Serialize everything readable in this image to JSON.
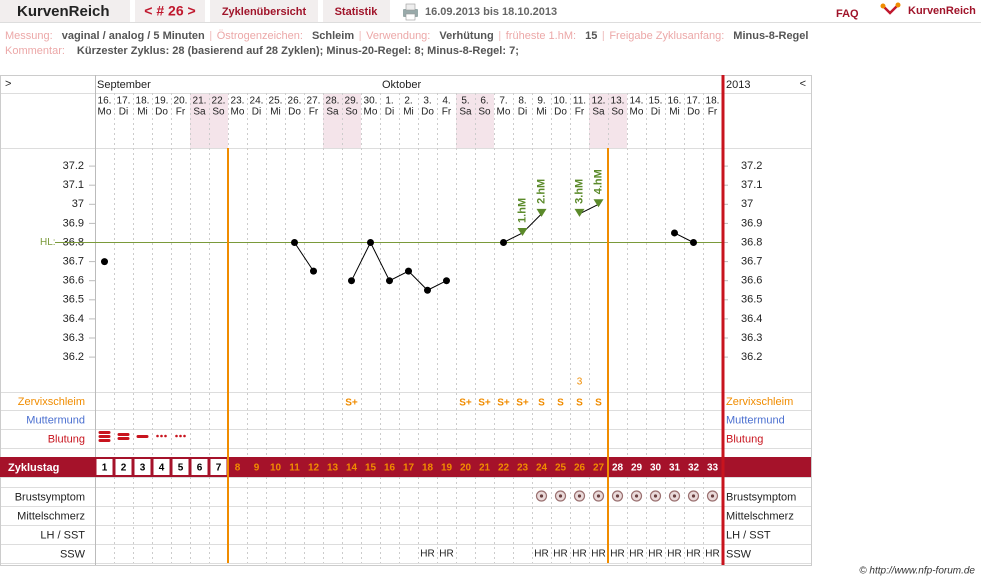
{
  "header": {
    "app": "KurvenReich",
    "cycle": "< # 26 >",
    "tabs": [
      "Zyklenübersicht",
      "Statistik"
    ],
    "range": "16.09.2013 bis 18.10.2013",
    "faq": "FAQ",
    "logo": "KurvenReich"
  },
  "info": {
    "items": [
      {
        "label": "Messung:",
        "value": "vaginal / analog / 5 Minuten"
      },
      {
        "label": "Östrogenzeichen:",
        "value": "Schleim"
      },
      {
        "label": "Verwendung:",
        "value": "Verhütung"
      },
      {
        "label": "früheste 1.hM:",
        "value": "15"
      },
      {
        "label": "Freigabe Zyklusanfang:",
        "value": "Minus-8-Regel"
      }
    ],
    "comment_label": "Kommentar:",
    "comment": "Kürzester Zyklus: 28 (basierend auf 28 Zyklen);  Minus-20-Regel: 8; Minus-8-Regel: 7;"
  },
  "calendar": {
    "nav_left": ">",
    "nav_right": "<",
    "year": "2013",
    "months": [
      {
        "label": "September",
        "start": 0
      },
      {
        "label": "Oktober",
        "start": 15
      }
    ],
    "shaded": [
      false,
      false,
      false,
      false,
      false,
      true,
      true,
      false,
      false,
      false,
      false,
      false,
      true,
      true,
      false,
      false,
      false,
      false,
      false,
      true,
      true,
      false,
      false,
      false,
      false,
      false,
      true,
      true,
      false,
      false,
      false,
      false,
      false
    ]
  },
  "chart_data": {
    "type": "line",
    "categories": [
      "16.",
      "17.",
      "18.",
      "19.",
      "20.",
      "21.",
      "22.",
      "23.",
      "24.",
      "25.",
      "26.",
      "27.",
      "28.",
      "29.",
      "30.",
      "1.",
      "2.",
      "3.",
      "4.",
      "5.",
      "6.",
      "7.",
      "8.",
      "9.",
      "10.",
      "11.",
      "12.",
      "13.",
      "14.",
      "15.",
      "16.",
      "17.",
      "18."
    ],
    "weekdays": [
      "Mo",
      "Di",
      "Mi",
      "Do",
      "Fr",
      "Sa",
      "So",
      "Mo",
      "Di",
      "Mi",
      "Do",
      "Fr",
      "Sa",
      "So",
      "Mo",
      "Di",
      "Mi",
      "Do",
      "Fr",
      "Sa",
      "So",
      "Mo",
      "Di",
      "Mi",
      "Do",
      "Fr",
      "Sa",
      "So",
      "Mo",
      "Di",
      "Mi",
      "Do",
      "Fr"
    ],
    "values": [
      36.7,
      null,
      null,
      null,
      null,
      null,
      null,
      null,
      null,
      null,
      36.8,
      36.65,
      null,
      36.6,
      36.8,
      36.6,
      36.65,
      36.55,
      36.6,
      null,
      null,
      36.8,
      36.85,
      36.95,
      null,
      36.95,
      37.0,
      null,
      null,
      null,
      36.85,
      36.8,
      null
    ],
    "hm_labels": [
      null,
      null,
      null,
      null,
      null,
      null,
      null,
      null,
      null,
      null,
      null,
      null,
      null,
      null,
      null,
      null,
      null,
      null,
      null,
      null,
      null,
      null,
      "1.hM",
      "2.hM",
      null,
      "3.hM",
      "4.hM",
      null,
      null,
      null,
      null,
      null,
      null
    ],
    "color": "#000000",
    "hm_color": "#5b8a2a",
    "ylim": [
      36.0,
      37.3
    ],
    "yticks": [
      37.2,
      37.1,
      37,
      36.9,
      36.8,
      36.7,
      36.6,
      36.5,
      36.4,
      36.3,
      36.2
    ],
    "hl": {
      "label": "HL:",
      "value": 36.8,
      "color": "#7a9a3a"
    },
    "phase_lines": [
      7,
      27
    ],
    "phase_color": "#f08c00",
    "end_color": "#c8141e"
  },
  "rows": {
    "zervixschleim": {
      "label": "Zervixschleim",
      "color": "#f08c00",
      "values": [
        null,
        null,
        null,
        null,
        null,
        null,
        null,
        null,
        null,
        null,
        null,
        null,
        null,
        "S+",
        null,
        null,
        null,
        null,
        null,
        "S+",
        "S+",
        "S+",
        "S+",
        "S",
        "S",
        "S",
        "S",
        null,
        null,
        null,
        null,
        null,
        null
      ],
      "notes": [
        null,
        null,
        null,
        null,
        null,
        null,
        null,
        null,
        null,
        null,
        null,
        null,
        null,
        null,
        null,
        null,
        null,
        null,
        null,
        null,
        null,
        null,
        null,
        null,
        null,
        "3",
        null,
        null,
        null,
        null,
        null,
        null,
        null
      ]
    },
    "muttermund": {
      "label": "Muttermund",
      "color": "#4a6fd0"
    },
    "blutung": {
      "label": "Blutung",
      "color": "#c8141e",
      "values": [
        4,
        3,
        2,
        1,
        1,
        null,
        null,
        null,
        null,
        null,
        null,
        null,
        null,
        null,
        null,
        null,
        null,
        null,
        null,
        null,
        null,
        null,
        null,
        null,
        null,
        null,
        null,
        null,
        null,
        null,
        null,
        null,
        null
      ]
    },
    "zyklustag": {
      "label": "Zyklustag",
      "color": "#a5122a",
      "values": [
        1,
        2,
        3,
        4,
        5,
        6,
        7,
        8,
        9,
        10,
        11,
        12,
        13,
        14,
        15,
        16,
        17,
        18,
        19,
        20,
        21,
        22,
        23,
        24,
        25,
        26,
        27,
        28,
        29,
        30,
        31,
        32,
        33
      ]
    },
    "brustsymptom": {
      "label": "Brustsymptom",
      "values": [
        false,
        false,
        false,
        false,
        false,
        false,
        false,
        false,
        false,
        false,
        false,
        false,
        false,
        false,
        false,
        false,
        false,
        false,
        false,
        false,
        false,
        false,
        false,
        true,
        true,
        true,
        true,
        true,
        true,
        true,
        true,
        true,
        true
      ]
    },
    "mittelschmerz": {
      "label": "Mittelschmerz"
    },
    "lh_sst": {
      "label": "LH / SST"
    },
    "ssw": {
      "label": "SSW",
      "values": [
        null,
        null,
        null,
        null,
        null,
        null,
        null,
        null,
        null,
        null,
        null,
        null,
        null,
        null,
        null,
        null,
        null,
        "HR",
        "HR",
        null,
        null,
        null,
        null,
        "HR",
        "HR",
        "HR",
        "HR",
        "HR",
        "HR",
        "HR",
        "HR",
        "HR",
        "HR"
      ]
    }
  },
  "footer": "© http://www.nfp-forum.de"
}
